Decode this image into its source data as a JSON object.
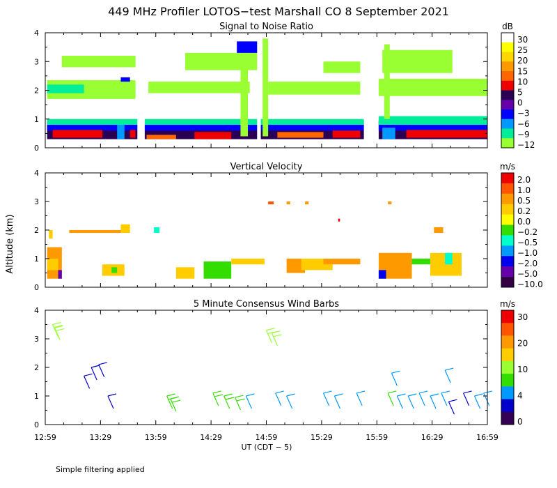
{
  "figure": {
    "title": "449 MHz Profiler LOTOS−test Marshall CO  8 September 2021",
    "xlabel": "UT  (CDT − 5)",
    "ylabel": "Altitude (km)",
    "x_ticks": [
      "12:59",
      "13:29",
      "13:59",
      "14:29",
      "14:59",
      "15:29",
      "15:59",
      "16:29",
      "16:59"
    ],
    "y_ticks": [
      "0",
      "1",
      "2",
      "3",
      "4"
    ],
    "footnote": "Simple filtering applied"
  },
  "chart_data": [
    {
      "type": "heatmap",
      "title": "Signal to Noise Ratio",
      "colorbar_unit": "dB",
      "colorbar_labels": [
        "30",
        "25",
        "20",
        "15",
        "10",
        "5",
        "0",
        "−3",
        "−6",
        "−9",
        "−12"
      ],
      "colorbar_colors": [
        "#ffffff",
        "#ffff00",
        "#ffd700",
        "#ff9900",
        "#ff6600",
        "#ee0000",
        "#2a0055",
        "#6600aa",
        "#0000ff",
        "#0099ff",
        "#00ee99",
        "#99ff33"
      ],
      "xlim": [
        "12:59",
        "16:59"
      ],
      "ylim": [
        0,
        4
      ],
      "data_gaps": [
        [
          "13:49",
          "13:53"
        ],
        [
          "14:54",
          "14:56"
        ],
        [
          "15:52",
          "15:56"
        ]
      ],
      "regions": [
        {
          "x": [
            "13:00",
            "15:52"
          ],
          "y": [
            0.3,
            0.95
          ],
          "color": "#2a0055"
        },
        {
          "x": [
            "16:00",
            "16:59"
          ],
          "y": [
            0.3,
            0.95
          ],
          "color": "#2a0055"
        },
        {
          "x": [
            "13:00",
            "15:52"
          ],
          "y": [
            0.6,
            0.95
          ],
          "color": "#0000ff"
        },
        {
          "x": [
            "16:00",
            "16:59"
          ],
          "y": [
            0.6,
            0.95
          ],
          "color": "#0000ff"
        },
        {
          "x": [
            "13:00",
            "15:52"
          ],
          "y": [
            0.8,
            1.0
          ],
          "color": "#00ee99"
        },
        {
          "x": [
            "16:00",
            "16:59"
          ],
          "y": [
            0.8,
            1.1
          ],
          "color": "#00ee99"
        },
        {
          "x": [
            "13:03",
            "13:30"
          ],
          "y": [
            0.35,
            0.62
          ],
          "color": "#ee0000"
        },
        {
          "x": [
            "13:45",
            "13:48"
          ],
          "y": [
            0.35,
            0.62
          ],
          "color": "#ee0000"
        },
        {
          "x": [
            "13:54",
            "14:10"
          ],
          "y": [
            0.3,
            0.45
          ],
          "color": "#ff6600"
        },
        {
          "x": [
            "14:20",
            "14:40"
          ],
          "y": [
            0.3,
            0.55
          ],
          "color": "#ee0000"
        },
        {
          "x": [
            "15:05",
            "15:30"
          ],
          "y": [
            0.35,
            0.55
          ],
          "color": "#ff6600"
        },
        {
          "x": [
            "15:35",
            "15:50"
          ],
          "y": [
            0.35,
            0.6
          ],
          "color": "#ee0000"
        },
        {
          "x": [
            "16:15",
            "16:59"
          ],
          "y": [
            0.35,
            0.62
          ],
          "color": "#ee0000"
        },
        {
          "x": [
            "13:38",
            "13:42"
          ],
          "y": [
            0.3,
            0.8
          ],
          "color": "#0099ff"
        },
        {
          "x": [
            "16:02",
            "16:09"
          ],
          "y": [
            0.3,
            0.7
          ],
          "color": "#0099ff"
        },
        {
          "x": [
            "13:00",
            "13:48"
          ],
          "y": [
            1.7,
            2.35
          ],
          "color": "#99ff33"
        },
        {
          "x": [
            "13:55",
            "14:50"
          ],
          "y": [
            1.9,
            2.3
          ],
          "color": "#99ff33"
        },
        {
          "x": [
            "15:00",
            "15:50"
          ],
          "y": [
            1.85,
            2.3
          ],
          "color": "#99ff33"
        },
        {
          "x": [
            "16:00",
            "16:59"
          ],
          "y": [
            1.8,
            2.4
          ],
          "color": "#99ff33"
        },
        {
          "x": [
            "13:00",
            "13:20"
          ],
          "y": [
            1.9,
            2.2
          ],
          "color": "#00ee99"
        },
        {
          "x": [
            "13:08",
            "13:48"
          ],
          "y": [
            2.8,
            3.2
          ],
          "color": "#99ff33"
        },
        {
          "x": [
            "14:15",
            "14:55"
          ],
          "y": [
            2.7,
            3.3
          ],
          "color": "#99ff33"
        },
        {
          "x": [
            "15:30",
            "15:50"
          ],
          "y": [
            2.6,
            3.0
          ],
          "color": "#99ff33"
        },
        {
          "x": [
            "16:02",
            "16:40"
          ],
          "y": [
            2.6,
            3.4
          ],
          "color": "#99ff33"
        },
        {
          "x": [
            "14:45",
            "14:49"
          ],
          "y": [
            0.4,
            3.2
          ],
          "color": "#99ff33"
        },
        {
          "x": [
            "14:57",
            "15:00"
          ],
          "y": [
            0.4,
            3.8
          ],
          "color": "#99ff33"
        },
        {
          "x": [
            "16:03",
            "16:06"
          ],
          "y": [
            1.0,
            3.6
          ],
          "color": "#99ff33"
        },
        {
          "x": [
            "14:43",
            "14:55"
          ],
          "y": [
            3.3,
            3.7
          ],
          "color": "#0000ff"
        },
        {
          "x": [
            "13:40",
            "13:45"
          ],
          "y": [
            2.3,
            2.45
          ],
          "color": "#0000ff"
        }
      ]
    },
    {
      "type": "heatmap",
      "title": "Vertical Velocity",
      "colorbar_unit": "m/s",
      "colorbar_labels": [
        "2.0",
        "1.0",
        "0.5",
        "0.2",
        "0.0",
        "−0.2",
        "−0.5",
        "−1.0",
        "−2.0",
        "−5.0",
        "−10.0"
      ],
      "colorbar_colors": [
        "#ee0000",
        "#ff5500",
        "#ff9900",
        "#ffcc00",
        "#ffff00",
        "#33dd00",
        "#00ffcc",
        "#0099ff",
        "#0000ee",
        "#6600aa",
        "#330044"
      ],
      "xlim": [
        "12:59",
        "16:59"
      ],
      "ylim": [
        0,
        4
      ],
      "regions": [
        {
          "x": [
            "13:00",
            "13:08"
          ],
          "y": [
            0.3,
            1.4
          ],
          "color": "#ff9900"
        },
        {
          "x": [
            "13:00",
            "13:06"
          ],
          "y": [
            0.6,
            1.0
          ],
          "color": "#ffcc00"
        },
        {
          "x": [
            "13:06",
            "13:08"
          ],
          "y": [
            0.3,
            0.6
          ],
          "color": "#6600aa"
        },
        {
          "x": [
            "13:30",
            "13:42"
          ],
          "y": [
            0.4,
            0.8
          ],
          "color": "#ffcc00"
        },
        {
          "x": [
            "13:35",
            "13:38"
          ],
          "y": [
            0.5,
            0.7
          ],
          "color": "#33dd00"
        },
        {
          "x": [
            "13:12",
            "13:40"
          ],
          "y": [
            1.9,
            2.0
          ],
          "color": "#ff9900"
        },
        {
          "x": [
            "13:40",
            "13:45"
          ],
          "y": [
            1.9,
            2.2
          ],
          "color": "#ffcc00"
        },
        {
          "x": [
            "13:01",
            "13:03"
          ],
          "y": [
            1.7,
            2.0
          ],
          "color": "#ffcc00"
        },
        {
          "x": [
            "14:10",
            "14:20"
          ],
          "y": [
            0.3,
            0.7
          ],
          "color": "#ffcc00"
        },
        {
          "x": [
            "14:25",
            "14:40"
          ],
          "y": [
            0.3,
            0.9
          ],
          "color": "#33dd00"
        },
        {
          "x": [
            "14:40",
            "14:58"
          ],
          "y": [
            0.8,
            1.0
          ],
          "color": "#ffcc00"
        },
        {
          "x": [
            "15:10",
            "15:20"
          ],
          "y": [
            0.5,
            1.0
          ],
          "color": "#ff9900"
        },
        {
          "x": [
            "15:18",
            "15:35"
          ],
          "y": [
            0.6,
            1.0
          ],
          "color": "#ffcc00"
        },
        {
          "x": [
            "15:30",
            "15:50"
          ],
          "y": [
            0.8,
            1.0
          ],
          "color": "#ff9900"
        },
        {
          "x": [
            "16:00",
            "16:18"
          ],
          "y": [
            0.3,
            1.2
          ],
          "color": "#ff9900"
        },
        {
          "x": [
            "16:00",
            "16:04"
          ],
          "y": [
            0.3,
            0.6
          ],
          "color": "#0000ee"
        },
        {
          "x": [
            "16:18",
            "16:28"
          ],
          "y": [
            0.8,
            1.0
          ],
          "color": "#33dd00"
        },
        {
          "x": [
            "16:28",
            "16:45"
          ],
          "y": [
            0.4,
            1.2
          ],
          "color": "#ffcc00"
        },
        {
          "x": [
            "16:36",
            "16:40"
          ],
          "y": [
            0.8,
            1.2
          ],
          "color": "#00ffcc"
        },
        {
          "x": [
            "15:00",
            "15:03"
          ],
          "y": [
            2.9,
            3.0
          ],
          "color": "#ff5500"
        },
        {
          "x": [
            "15:10",
            "15:12"
          ],
          "y": [
            2.9,
            3.0
          ],
          "color": "#ff9900"
        },
        {
          "x": [
            "15:20",
            "15:22"
          ],
          "y": [
            2.9,
            3.0
          ],
          "color": "#ff9900"
        },
        {
          "x": [
            "15:38",
            "15:39"
          ],
          "y": [
            2.3,
            2.4
          ],
          "color": "#ee0000"
        },
        {
          "x": [
            "16:05",
            "16:07"
          ],
          "y": [
            2.9,
            3.0
          ],
          "color": "#ff9900"
        },
        {
          "x": [
            "16:30",
            "16:35"
          ],
          "y": [
            1.9,
            2.1
          ],
          "color": "#ff9900"
        },
        {
          "x": [
            "13:58",
            "14:01"
          ],
          "y": [
            1.9,
            2.1
          ],
          "color": "#00ffcc"
        }
      ]
    },
    {
      "type": "scatter",
      "title": "5 Minute Consensus Wind Barbs",
      "colorbar_unit": "m/s",
      "colorbar_labels": [
        "30",
        "20",
        "10",
        "4",
        "0"
      ],
      "colorbar_colors": [
        "#ee0000",
        "#ff5500",
        "#ff9900",
        "#ffcc00",
        "#99ff33",
        "#33dd00",
        "#0099ff",
        "#0000cc",
        "#330055"
      ],
      "xlim": [
        "12:59",
        "16:59"
      ],
      "ylim": [
        0,
        4
      ],
      "barbs": [
        {
          "x": "13:03",
          "y": 3.5,
          "speed": 12
        },
        {
          "x": "13:04",
          "y": 3.4,
          "speed": 12
        },
        {
          "x": "13:20",
          "y": 1.7,
          "speed": 3
        },
        {
          "x": "13:24",
          "y": 2.0,
          "speed": 3
        },
        {
          "x": "13:28",
          "y": 2.1,
          "speed": 2
        },
        {
          "x": "13:33",
          "y": 1.0,
          "speed": 3
        },
        {
          "x": "14:05",
          "y": 1.0,
          "speed": 9
        },
        {
          "x": "14:07",
          "y": 0.9,
          "speed": 9
        },
        {
          "x": "14:30",
          "y": 1.1,
          "speed": 8
        },
        {
          "x": "14:36",
          "y": 1.0,
          "speed": 8
        },
        {
          "x": "14:42",
          "y": 0.95,
          "speed": 8
        },
        {
          "x": "14:48",
          "y": 1.0,
          "speed": 6
        },
        {
          "x": "14:59",
          "y": 3.3,
          "speed": 10
        },
        {
          "x": "15:02",
          "y": 3.2,
          "speed": 10
        },
        {
          "x": "15:04",
          "y": 1.1,
          "speed": 5
        },
        {
          "x": "15:10",
          "y": 1.0,
          "speed": 5
        },
        {
          "x": "15:30",
          "y": 1.1,
          "speed": 5
        },
        {
          "x": "15:36",
          "y": 1.0,
          "speed": 5
        },
        {
          "x": "15:48",
          "y": 1.1,
          "speed": 5
        },
        {
          "x": "16:05",
          "y": 1.1,
          "speed": 7
        },
        {
          "x": "16:10",
          "y": 1.0,
          "speed": 6
        },
        {
          "x": "16:16",
          "y": 1.0,
          "speed": 5
        },
        {
          "x": "16:22",
          "y": 1.1,
          "speed": 5
        },
        {
          "x": "16:28",
          "y": 1.0,
          "speed": 5
        },
        {
          "x": "16:34",
          "y": 1.1,
          "speed": 5
        },
        {
          "x": "16:38",
          "y": 0.8,
          "speed": 2
        },
        {
          "x": "16:46",
          "y": 1.1,
          "speed": 2
        },
        {
          "x": "16:52",
          "y": 1.0,
          "speed": 5
        },
        {
          "x": "16:57",
          "y": 1.1,
          "speed": 5
        },
        {
          "x": "16:07",
          "y": 1.8,
          "speed": 5
        },
        {
          "x": "16:36",
          "y": 1.9,
          "speed": 5
        }
      ]
    }
  ]
}
